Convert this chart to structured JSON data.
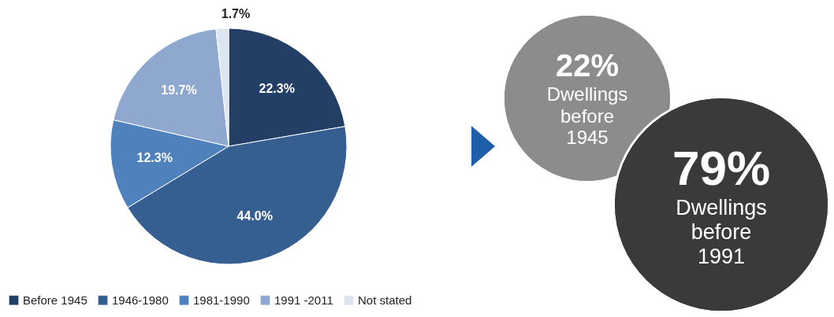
{
  "chart_data": [
    {
      "type": "pie",
      "categories": [
        "Before 1945",
        "1946-1980",
        "1981-1990",
        "1991 -2011",
        "Not stated"
      ],
      "values": [
        22.3,
        44.0,
        12.3,
        19.7,
        1.7
      ],
      "colors": [
        "#243f66",
        "#365f91",
        "#4f81bd",
        "#8fa8d0",
        "#dce6f2"
      ],
      "value_labels": [
        "22.3%",
        "44.0%",
        "12.3%",
        "19.7%",
        "1.7%"
      ],
      "legend": "bottom"
    },
    {
      "type": "other",
      "annotations": [
        "22%",
        "Dwellings before 1945",
        "79%",
        "Dwellings before 1991"
      ]
    }
  ]
}
